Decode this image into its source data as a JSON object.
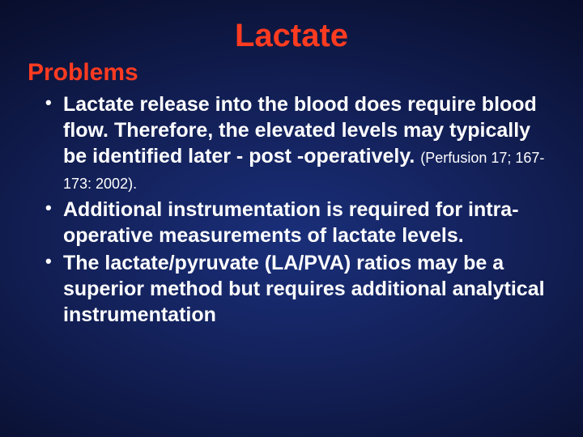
{
  "colors": {
    "title_color": "#ff3b20",
    "text_color": "#ffffff",
    "bg_gradient_inner": "#1a2f7a",
    "bg_gradient_mid": "#0a1133",
    "bg_gradient_outer": "#000000"
  },
  "typography": {
    "font_family": "Comic Sans MS",
    "title_fontsize": 40,
    "subhead_fontsize": 30,
    "body_fontsize": 25,
    "cite_fontsize": 18,
    "title_weight": "bold",
    "body_weight": "bold"
  },
  "title": "Lactate",
  "subhead": "Problems",
  "bullets": [
    {
      "text": "Lactate release into the blood does require blood flow.  Therefore, the elevated levels may  typically be identified later  -       post -operatively. ",
      "cite": "(Perfusion 17; 167-173: 2002)."
    },
    {
      "text": "Additional instrumentation is required for intra-operative measurements of lactate levels."
    },
    {
      "text": "The lactate/pyruvate (LA/PVA) ratios may be a superior method but requires additional analytical instrumentation"
    }
  ]
}
